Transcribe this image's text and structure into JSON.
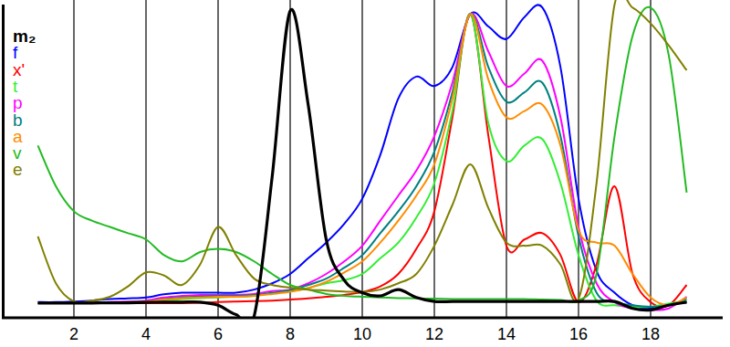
{
  "chart_data": {
    "type": "line",
    "x": [
      1,
      1.5,
      2,
      2.5,
      3,
      3.5,
      4,
      4.5,
      5,
      5.5,
      6,
      6.5,
      7,
      7.5,
      8,
      8.5,
      9,
      9.5,
      10,
      10.5,
      11,
      11.5,
      12,
      12.5,
      13,
      13.5,
      14,
      14.5,
      15,
      15.5,
      16,
      16.5,
      17,
      17.5,
      18,
      18.5,
      19
    ],
    "xlim": [
      0,
      20
    ],
    "xticks": [
      2,
      4,
      6,
      8,
      10,
      12,
      14,
      16,
      18
    ],
    "ylim": [
      0,
      100
    ],
    "grid": true,
    "legend": "top-left",
    "tick_labels": "x",
    "series": [
      {
        "name": "m₂",
        "color": "#000000",
        "values": [
          4.7,
          4.7,
          4.7,
          4.7,
          4.8,
          4.8,
          4.9,
          5,
          5,
          5,
          4,
          1,
          0.5,
          45,
          98,
          68,
          25,
          12,
          8,
          7,
          9,
          6.5,
          5.2,
          5.2,
          5.2,
          5.2,
          5.2,
          5.2,
          5.2,
          5.2,
          5.2,
          5.2,
          5.2,
          3,
          2.5,
          4,
          5
        ]
      },
      {
        "name": "f",
        "color": "#0000ff",
        "values": [
          5,
          5,
          5.2,
          5.5,
          6,
          6.2,
          6.5,
          7.5,
          8,
          8,
          8,
          8,
          9,
          11,
          14,
          19,
          24,
          30,
          38,
          52,
          70,
          77,
          74,
          80,
          97,
          93,
          89,
          96,
          99,
          80,
          38,
          15,
          8,
          4,
          3,
          4,
          5
        ]
      },
      {
        "name": "x'",
        "color": "#ff0000",
        "values": [
          4.7,
          4.7,
          4.7,
          4.7,
          4.7,
          4.7,
          4.7,
          4.7,
          4.7,
          4.8,
          5,
          5.2,
          5.3,
          5.5,
          5.8,
          6.2,
          6.7,
          7.3,
          8.2,
          10,
          14,
          22,
          34,
          64,
          97,
          58,
          23,
          25,
          27,
          20,
          5,
          17,
          42,
          14,
          5,
          4,
          10.5
        ]
      },
      {
        "name": "t",
        "color": "#33ee33",
        "values": [
          4.7,
          4.7,
          4.7,
          4.7,
          4.8,
          4.9,
          5,
          5.5,
          6,
          6.3,
          6.5,
          6.7,
          7,
          7.8,
          8.5,
          9.5,
          11,
          12,
          14,
          19,
          24,
          32,
          43,
          66,
          97,
          62,
          50,
          55,
          57,
          43,
          20,
          5.5,
          4,
          3.5,
          3.5,
          4.5,
          5.5
        ]
      },
      {
        "name": "p",
        "color": "#ff00ff",
        "values": [
          4.7,
          4.7,
          4.7,
          4.8,
          5,
          5.2,
          5.5,
          6.5,
          7,
          7.3,
          7.3,
          7.3,
          7.6,
          8.5,
          9,
          11,
          14,
          18,
          23,
          31,
          39,
          47,
          58,
          75,
          97,
          85,
          74,
          78,
          82,
          64,
          29,
          11,
          5,
          3,
          2.5,
          3,
          6.7
        ]
      },
      {
        "name": "b",
        "color": "#008080",
        "values": [
          4.7,
          4.7,
          4.7,
          4.7,
          4.8,
          5,
          5.2,
          6,
          6.5,
          6.8,
          7,
          7,
          7.3,
          8,
          8.8,
          10.5,
          12.5,
          16,
          20,
          27,
          34,
          42,
          53,
          72,
          97,
          80,
          69,
          72,
          75,
          58,
          26,
          8,
          5,
          4,
          3.5,
          4,
          6
        ]
      },
      {
        "name": "a",
        "color": "#ff8c00",
        "values": [
          4.7,
          4.7,
          4.7,
          4.7,
          4.8,
          5,
          5.2,
          5.8,
          6.3,
          6.5,
          6.7,
          6.7,
          7,
          7.6,
          8.3,
          9.5,
          11.5,
          14.5,
          18,
          24,
          31,
          39,
          49,
          70,
          97,
          76,
          64,
          66,
          68,
          55,
          28,
          24,
          23,
          14,
          6.5,
          4,
          6.5
        ]
      },
      {
        "name": "v",
        "color": "#22bb22",
        "values": [
          55,
          42,
          34,
          31,
          29,
          27,
          25,
          20,
          18,
          21,
          22,
          21,
          18,
          14,
          10.5,
          9,
          7.6,
          7,
          6.7,
          6.5,
          6.3,
          6.2,
          6.1,
          6,
          6,
          6,
          6,
          6,
          5.8,
          5.7,
          5.5,
          14,
          58,
          90,
          99,
          84,
          40
        ]
      },
      {
        "name": "e",
        "color": "#808000",
        "values": [
          26,
          11,
          5.2,
          5.5,
          6.7,
          10,
          14.5,
          13.5,
          10.5,
          17,
          29,
          20,
          12.5,
          10.5,
          9.6,
          9,
          8.7,
          8.4,
          8.2,
          9,
          11,
          14,
          23,
          36,
          49,
          35,
          24,
          23,
          23,
          17,
          6,
          43,
          100,
          99,
          94,
          87,
          79
        ]
      }
    ]
  }
}
